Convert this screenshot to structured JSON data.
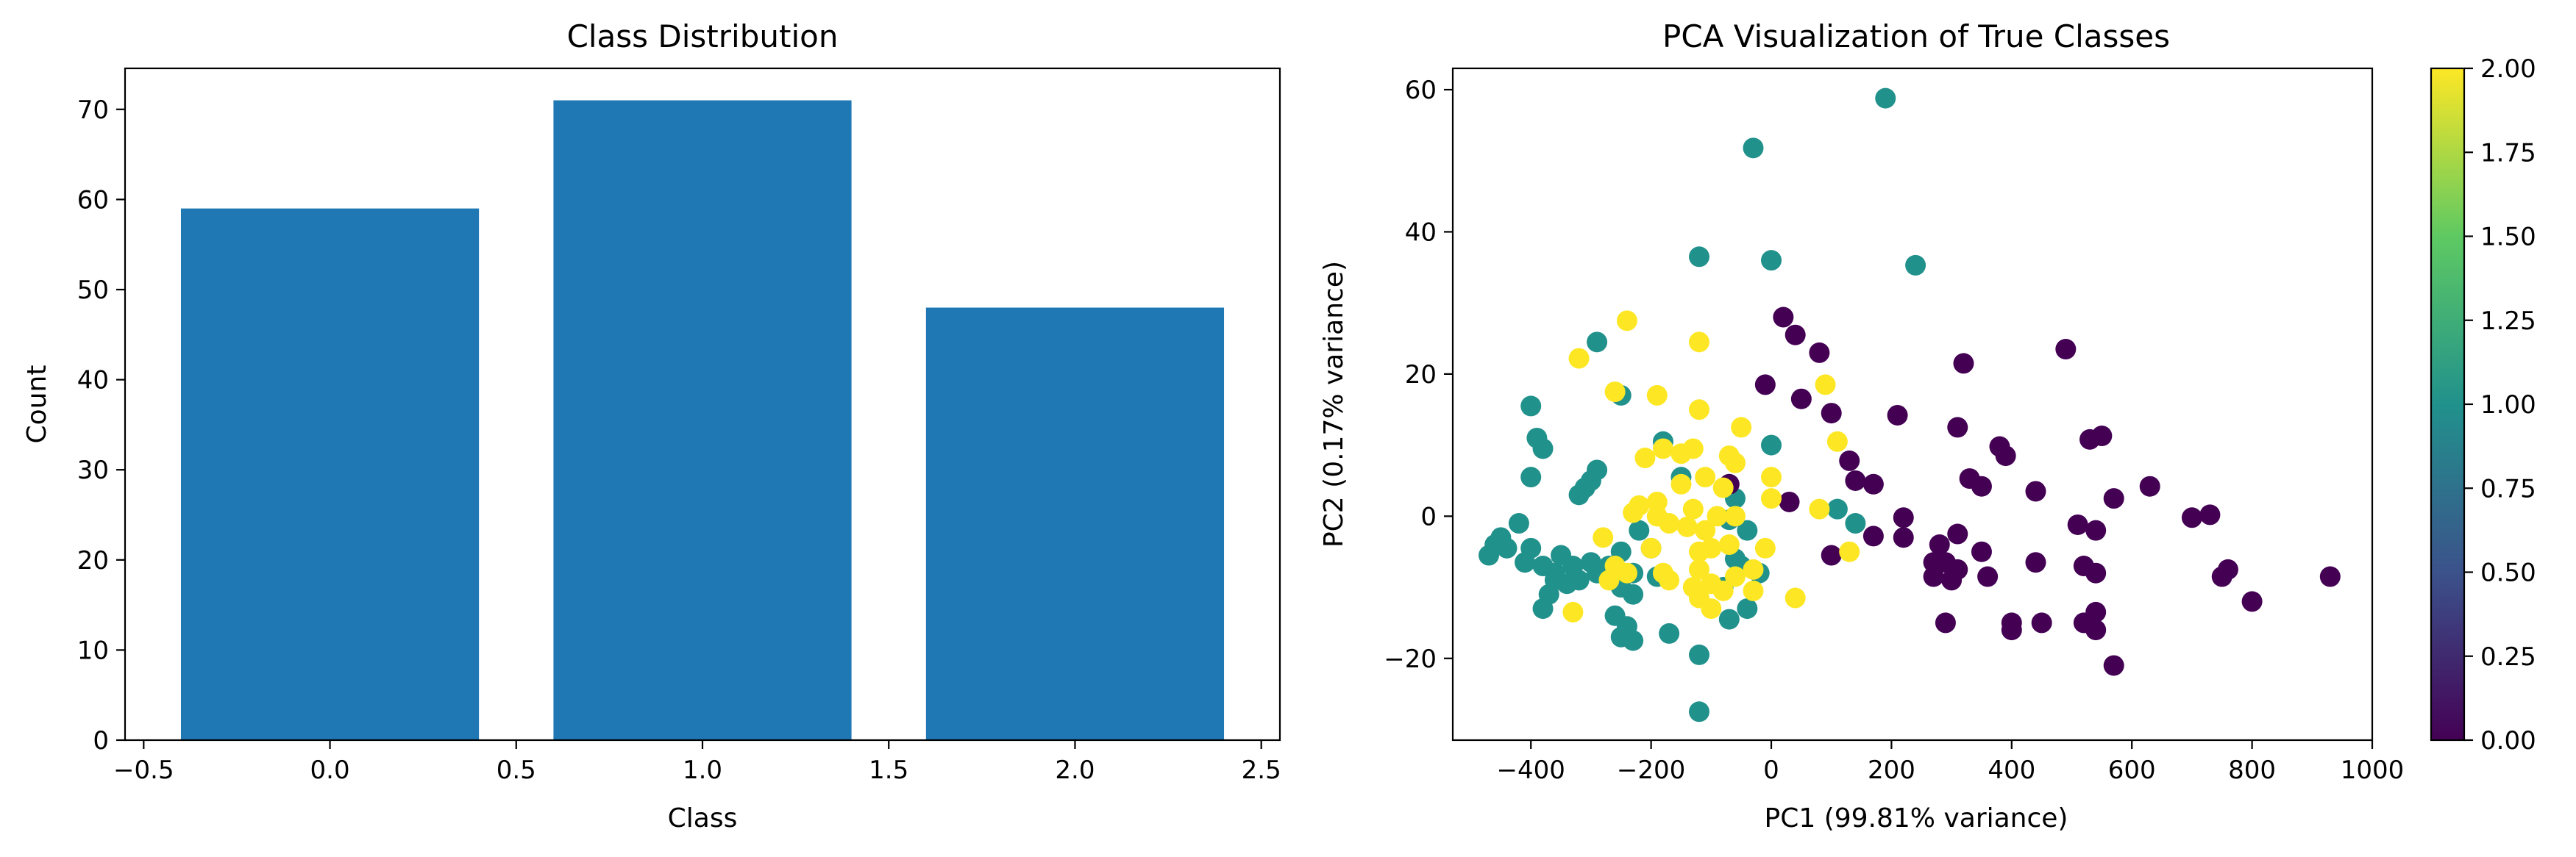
{
  "chart_data": [
    {
      "type": "bar",
      "title": "Class Distribution",
      "xlabel": "Class",
      "ylabel": "Count",
      "x": [
        0,
        1,
        2
      ],
      "values": [
        59,
        71,
        48
      ],
      "bar_width": 0.8,
      "xlim": [
        -0.55,
        2.55
      ],
      "ylim": [
        0,
        74.55
      ],
      "xticks": [
        -0.5,
        0.0,
        0.5,
        1.0,
        1.5,
        2.0,
        2.5
      ],
      "xtick_labels": [
        "−0.5",
        "0.0",
        "0.5",
        "1.0",
        "1.5",
        "2.0",
        "2.5"
      ],
      "yticks": [
        0,
        10,
        20,
        30,
        40,
        50,
        60,
        70
      ],
      "ytick_labels": [
        "0",
        "10",
        "20",
        "30",
        "40",
        "50",
        "60",
        "70"
      ],
      "grid": false,
      "color": "#1f77b4"
    },
    {
      "type": "scatter",
      "title": "PCA Visualization of True Classes",
      "xlabel": "PC1 (99.81% variance)",
      "ylabel": "PC2 (0.17% variance)",
      "xlim": [
        -530,
        1000
      ],
      "ylim": [
        -31.5,
        63
      ],
      "xticks": [
        -400,
        -200,
        0,
        200,
        400,
        600,
        800,
        1000
      ],
      "xtick_labels": [
        "−400",
        "−200",
        "0",
        "200",
        "400",
        "600",
        "800",
        "1000"
      ],
      "yticks": [
        -20,
        0,
        20,
        40,
        60
      ],
      "ytick_labels": [
        "−20",
        "0",
        "20",
        "40",
        "60"
      ],
      "grid": false,
      "colorbar": {
        "range": [
          0,
          2
        ],
        "ticks": [
          0.0,
          0.25,
          0.5,
          0.75,
          1.0,
          1.25,
          1.5,
          1.75,
          2.0
        ],
        "tick_labels": [
          "0.00",
          "0.25",
          "0.50",
          "0.75",
          "1.00",
          "1.25",
          "1.50",
          "1.75",
          "2.00"
        ],
        "colormap": "viridis",
        "colors": [
          "#440154",
          "#3b528b",
          "#21918c",
          "#5ec962",
          "#fde725"
        ]
      },
      "class_colors": [
        "#440154",
        "#21918c",
        "#fde725"
      ],
      "points": [
        [
          190,
          58.8,
          1
        ],
        [
          -30,
          51.8,
          1
        ],
        [
          0,
          36,
          1
        ],
        [
          -120,
          36.5,
          1
        ],
        [
          240,
          35.3,
          1
        ],
        [
          -290,
          24.5,
          1
        ],
        [
          -250,
          17,
          1
        ],
        [
          -400,
          15.5,
          1
        ],
        [
          -390,
          11,
          1
        ],
        [
          -380,
          9.5,
          1
        ],
        [
          -180,
          10.5,
          1
        ],
        [
          0,
          10,
          1
        ],
        [
          -290,
          6.5,
          1
        ],
        [
          -300,
          5,
          1
        ],
        [
          -400,
          5.5,
          1
        ],
        [
          -310,
          4,
          1
        ],
        [
          -320,
          3,
          1
        ],
        [
          -60,
          2.5,
          1
        ],
        [
          110,
          1,
          1
        ],
        [
          -420,
          -1,
          1
        ],
        [
          -450,
          -3,
          1
        ],
        [
          -460,
          -4,
          1
        ],
        [
          -470,
          -5.5,
          1
        ],
        [
          -440,
          -4.5,
          1
        ],
        [
          -400,
          -4.5,
          1
        ],
        [
          -410,
          -6.5,
          1
        ],
        [
          -380,
          -7,
          1
        ],
        [
          -360,
          -8,
          1
        ],
        [
          -350,
          -5.5,
          1
        ],
        [
          -330,
          -7,
          1
        ],
        [
          -300,
          -6.5,
          1
        ],
        [
          -290,
          -8,
          1
        ],
        [
          -270,
          -7,
          1
        ],
        [
          -360,
          -9,
          1
        ],
        [
          -340,
          -9.5,
          1
        ],
        [
          -320,
          -9,
          1
        ],
        [
          -370,
          -11,
          1
        ],
        [
          -380,
          -13,
          1
        ],
        [
          -250,
          -5,
          1
        ],
        [
          -230,
          -8,
          1
        ],
        [
          -220,
          -2,
          1
        ],
        [
          -200,
          -4.5,
          1
        ],
        [
          -190,
          -8.5,
          1
        ],
        [
          -250,
          -10,
          1
        ],
        [
          -230,
          -11,
          1
        ],
        [
          -260,
          -14,
          1
        ],
        [
          -240,
          -15.5,
          1
        ],
        [
          -230,
          -17.5,
          1
        ],
        [
          -250,
          -17,
          1
        ],
        [
          -170,
          -16.5,
          1
        ],
        [
          -120,
          -19.5,
          1
        ],
        [
          -120,
          -27.5,
          1
        ],
        [
          -80,
          -10,
          1
        ],
        [
          -70,
          -14.5,
          1
        ],
        [
          -40,
          -13,
          1
        ],
        [
          -60,
          -6,
          1
        ],
        [
          -40,
          -2,
          1
        ],
        [
          -70,
          -0.5,
          1
        ],
        [
          -50,
          -7,
          1
        ],
        [
          -150,
          5.5,
          1
        ],
        [
          -20,
          -8,
          1
        ],
        [
          140,
          -1,
          1
        ],
        [
          20,
          28,
          0
        ],
        [
          40,
          25.5,
          0
        ],
        [
          80,
          23,
          0
        ],
        [
          320,
          21.5,
          0
        ],
        [
          490,
          23.5,
          0
        ],
        [
          -10,
          18.5,
          0
        ],
        [
          50,
          16.5,
          0
        ],
        [
          100,
          14.5,
          0
        ],
        [
          210,
          14.2,
          0
        ],
        [
          310,
          12.5,
          0
        ],
        [
          530,
          10.8,
          0
        ],
        [
          550,
          11.3,
          0
        ],
        [
          380,
          9.8,
          0
        ],
        [
          390,
          8.5,
          0
        ],
        [
          130,
          7.8,
          0
        ],
        [
          140,
          5,
          0
        ],
        [
          170,
          4.5,
          0
        ],
        [
          -70,
          4.5,
          0
        ],
        [
          330,
          5.3,
          0
        ],
        [
          350,
          4.2,
          0
        ],
        [
          440,
          3.5,
          0
        ],
        [
          570,
          2.5,
          0
        ],
        [
          630,
          4.2,
          0
        ],
        [
          30,
          2,
          0
        ],
        [
          220,
          -0.2,
          0
        ],
        [
          510,
          -1.2,
          0
        ],
        [
          540,
          -2,
          0
        ],
        [
          700,
          -0.2,
          0
        ],
        [
          730,
          0.2,
          0
        ],
        [
          170,
          -2.8,
          0
        ],
        [
          220,
          -3,
          0
        ],
        [
          280,
          -4,
          0
        ],
        [
          310,
          -2.5,
          0
        ],
        [
          350,
          -5,
          0
        ],
        [
          100,
          -5.5,
          0
        ],
        [
          270,
          -6.5,
          0
        ],
        [
          290,
          -6.5,
          0
        ],
        [
          310,
          -7.5,
          0
        ],
        [
          440,
          -6.5,
          0
        ],
        [
          520,
          -7,
          0
        ],
        [
          540,
          -8,
          0
        ],
        [
          760,
          -7.5,
          0
        ],
        [
          750,
          -8.5,
          0
        ],
        [
          930,
          -8.5,
          0
        ],
        [
          360,
          -8.5,
          0
        ],
        [
          270,
          -8.5,
          0
        ],
        [
          300,
          -9,
          0
        ],
        [
          800,
          -12,
          0
        ],
        [
          540,
          -13.5,
          0
        ],
        [
          400,
          -15,
          0
        ],
        [
          400,
          -16,
          0
        ],
        [
          450,
          -15,
          0
        ],
        [
          520,
          -15,
          0
        ],
        [
          540,
          -16,
          0
        ],
        [
          290,
          -15,
          0
        ],
        [
          570,
          -21,
          0
        ],
        [
          -240,
          27.5,
          2
        ],
        [
          -120,
          24.5,
          2
        ],
        [
          -320,
          22.2,
          2
        ],
        [
          -260,
          17.5,
          2
        ],
        [
          -190,
          17,
          2
        ],
        [
          -120,
          15,
          2
        ],
        [
          90,
          18.5,
          2
        ],
        [
          -50,
          12.5,
          2
        ],
        [
          110,
          10.5,
          2
        ],
        [
          -180,
          9.5,
          2
        ],
        [
          -130,
          9.5,
          2
        ],
        [
          -150,
          8.8,
          2
        ],
        [
          -210,
          8.2,
          2
        ],
        [
          -70,
          8.5,
          2
        ],
        [
          -60,
          7.5,
          2
        ],
        [
          -110,
          5.5,
          2
        ],
        [
          0,
          5.5,
          2
        ],
        [
          -150,
          4.5,
          2
        ],
        [
          -80,
          4,
          2
        ],
        [
          -190,
          2,
          2
        ],
        [
          -220,
          1.5,
          2
        ],
        [
          -230,
          0.5,
          2
        ],
        [
          -130,
          1,
          2
        ],
        [
          0,
          2.5,
          2
        ],
        [
          80,
          1,
          2
        ],
        [
          -190,
          0,
          2
        ],
        [
          -90,
          0,
          2
        ],
        [
          -60,
          0,
          2
        ],
        [
          -170,
          -1,
          2
        ],
        [
          -140,
          -1.5,
          2
        ],
        [
          -110,
          -2,
          2
        ],
        [
          -280,
          -3,
          2
        ],
        [
          -200,
          -4.5,
          2
        ],
        [
          -100,
          -4.5,
          2
        ],
        [
          -70,
          -4,
          2
        ],
        [
          -10,
          -4.5,
          2
        ],
        [
          130,
          -5,
          2
        ],
        [
          -260,
          -7,
          2
        ],
        [
          -240,
          -8,
          2
        ],
        [
          -180,
          -8,
          2
        ],
        [
          -120,
          -7.5,
          2
        ],
        [
          -60,
          -8.5,
          2
        ],
        [
          -170,
          -9,
          2
        ],
        [
          -130,
          -10,
          2
        ],
        [
          -100,
          -9.5,
          2
        ],
        [
          -80,
          -10.5,
          2
        ],
        [
          -30,
          -10.5,
          2
        ],
        [
          40,
          -11.5,
          2
        ],
        [
          -120,
          -11.5,
          2
        ],
        [
          -100,
          -13,
          2
        ],
        [
          -330,
          -13.5,
          2
        ],
        [
          -270,
          -9,
          2
        ],
        [
          -30,
          -7.5,
          2
        ],
        [
          -120,
          -5,
          2
        ]
      ]
    }
  ]
}
